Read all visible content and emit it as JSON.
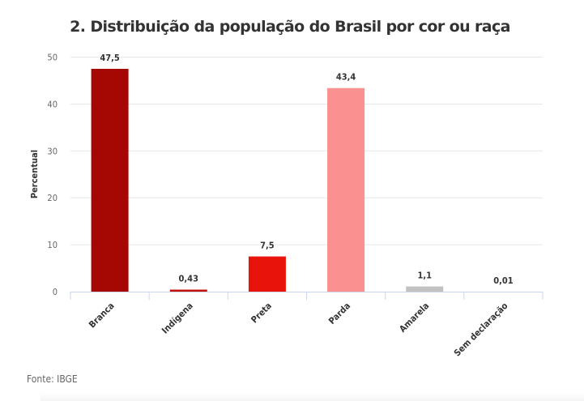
{
  "chart_data": {
    "type": "bar",
    "title": "2. Distribuição da população do Brasil por cor ou raça",
    "xlabel": "",
    "ylabel": "Percentual",
    "ylim": [
      0,
      50
    ],
    "yticks": [
      0,
      10,
      20,
      30,
      40,
      50
    ],
    "grid": true,
    "categories": [
      "Branca",
      "Indígena",
      "Preta",
      "Parda",
      "Amarela",
      "Sem declaração"
    ],
    "values": [
      47.5,
      0.43,
      7.5,
      43.4,
      1.1,
      0.01
    ],
    "data_labels": [
      "47,5",
      "0,43",
      "7,5",
      "43,4",
      "1,1",
      "0,01"
    ],
    "colors": [
      "#a50803",
      "#c0140c",
      "#e8130a",
      "#fa9090",
      "#c2c2c2",
      "#dddddd"
    ],
    "source": "Fonte: IBGE"
  }
}
